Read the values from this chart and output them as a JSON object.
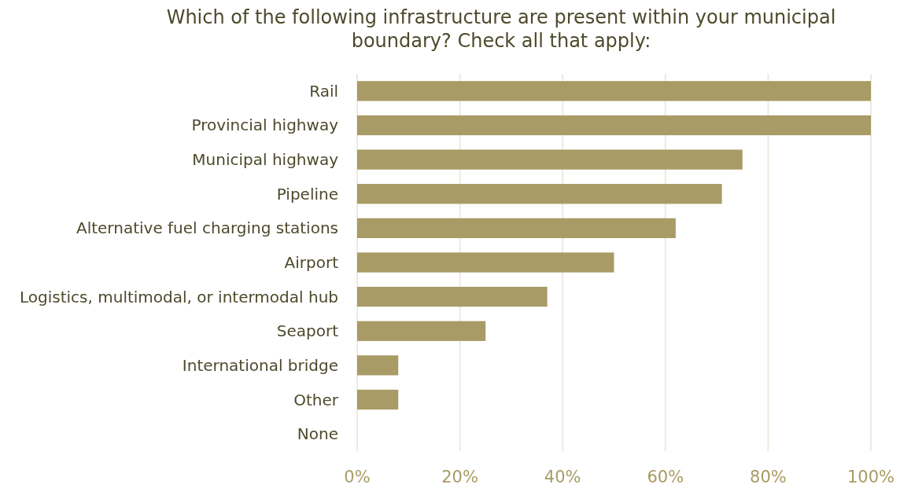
{
  "chart_data": {
    "type": "bar",
    "orientation": "horizontal",
    "title": "Which of the following infrastructure are present within your municipal boundary? Check all that apply:",
    "categories": [
      "Rail",
      "Provincial highway",
      "Municipal highway",
      "Pipeline",
      "Alternative fuel charging stations",
      "Airport",
      "Logistics, multimodal, or intermodal hub",
      "Seaport",
      "International bridge",
      "Other",
      "None"
    ],
    "values": [
      100,
      100,
      75,
      71,
      62,
      50,
      37,
      25,
      8,
      8,
      0
    ],
    "color": "#a89b65",
    "xlim": [
      0,
      100
    ],
    "xticks": [
      {
        "value": 0,
        "label": "0%"
      },
      {
        "value": 20,
        "label": "20%"
      },
      {
        "value": 40,
        "label": "40%"
      },
      {
        "value": 60,
        "label": "60%"
      },
      {
        "value": 80,
        "label": "80%"
      },
      {
        "value": 100,
        "label": "100%"
      }
    ],
    "grid": "x"
  }
}
